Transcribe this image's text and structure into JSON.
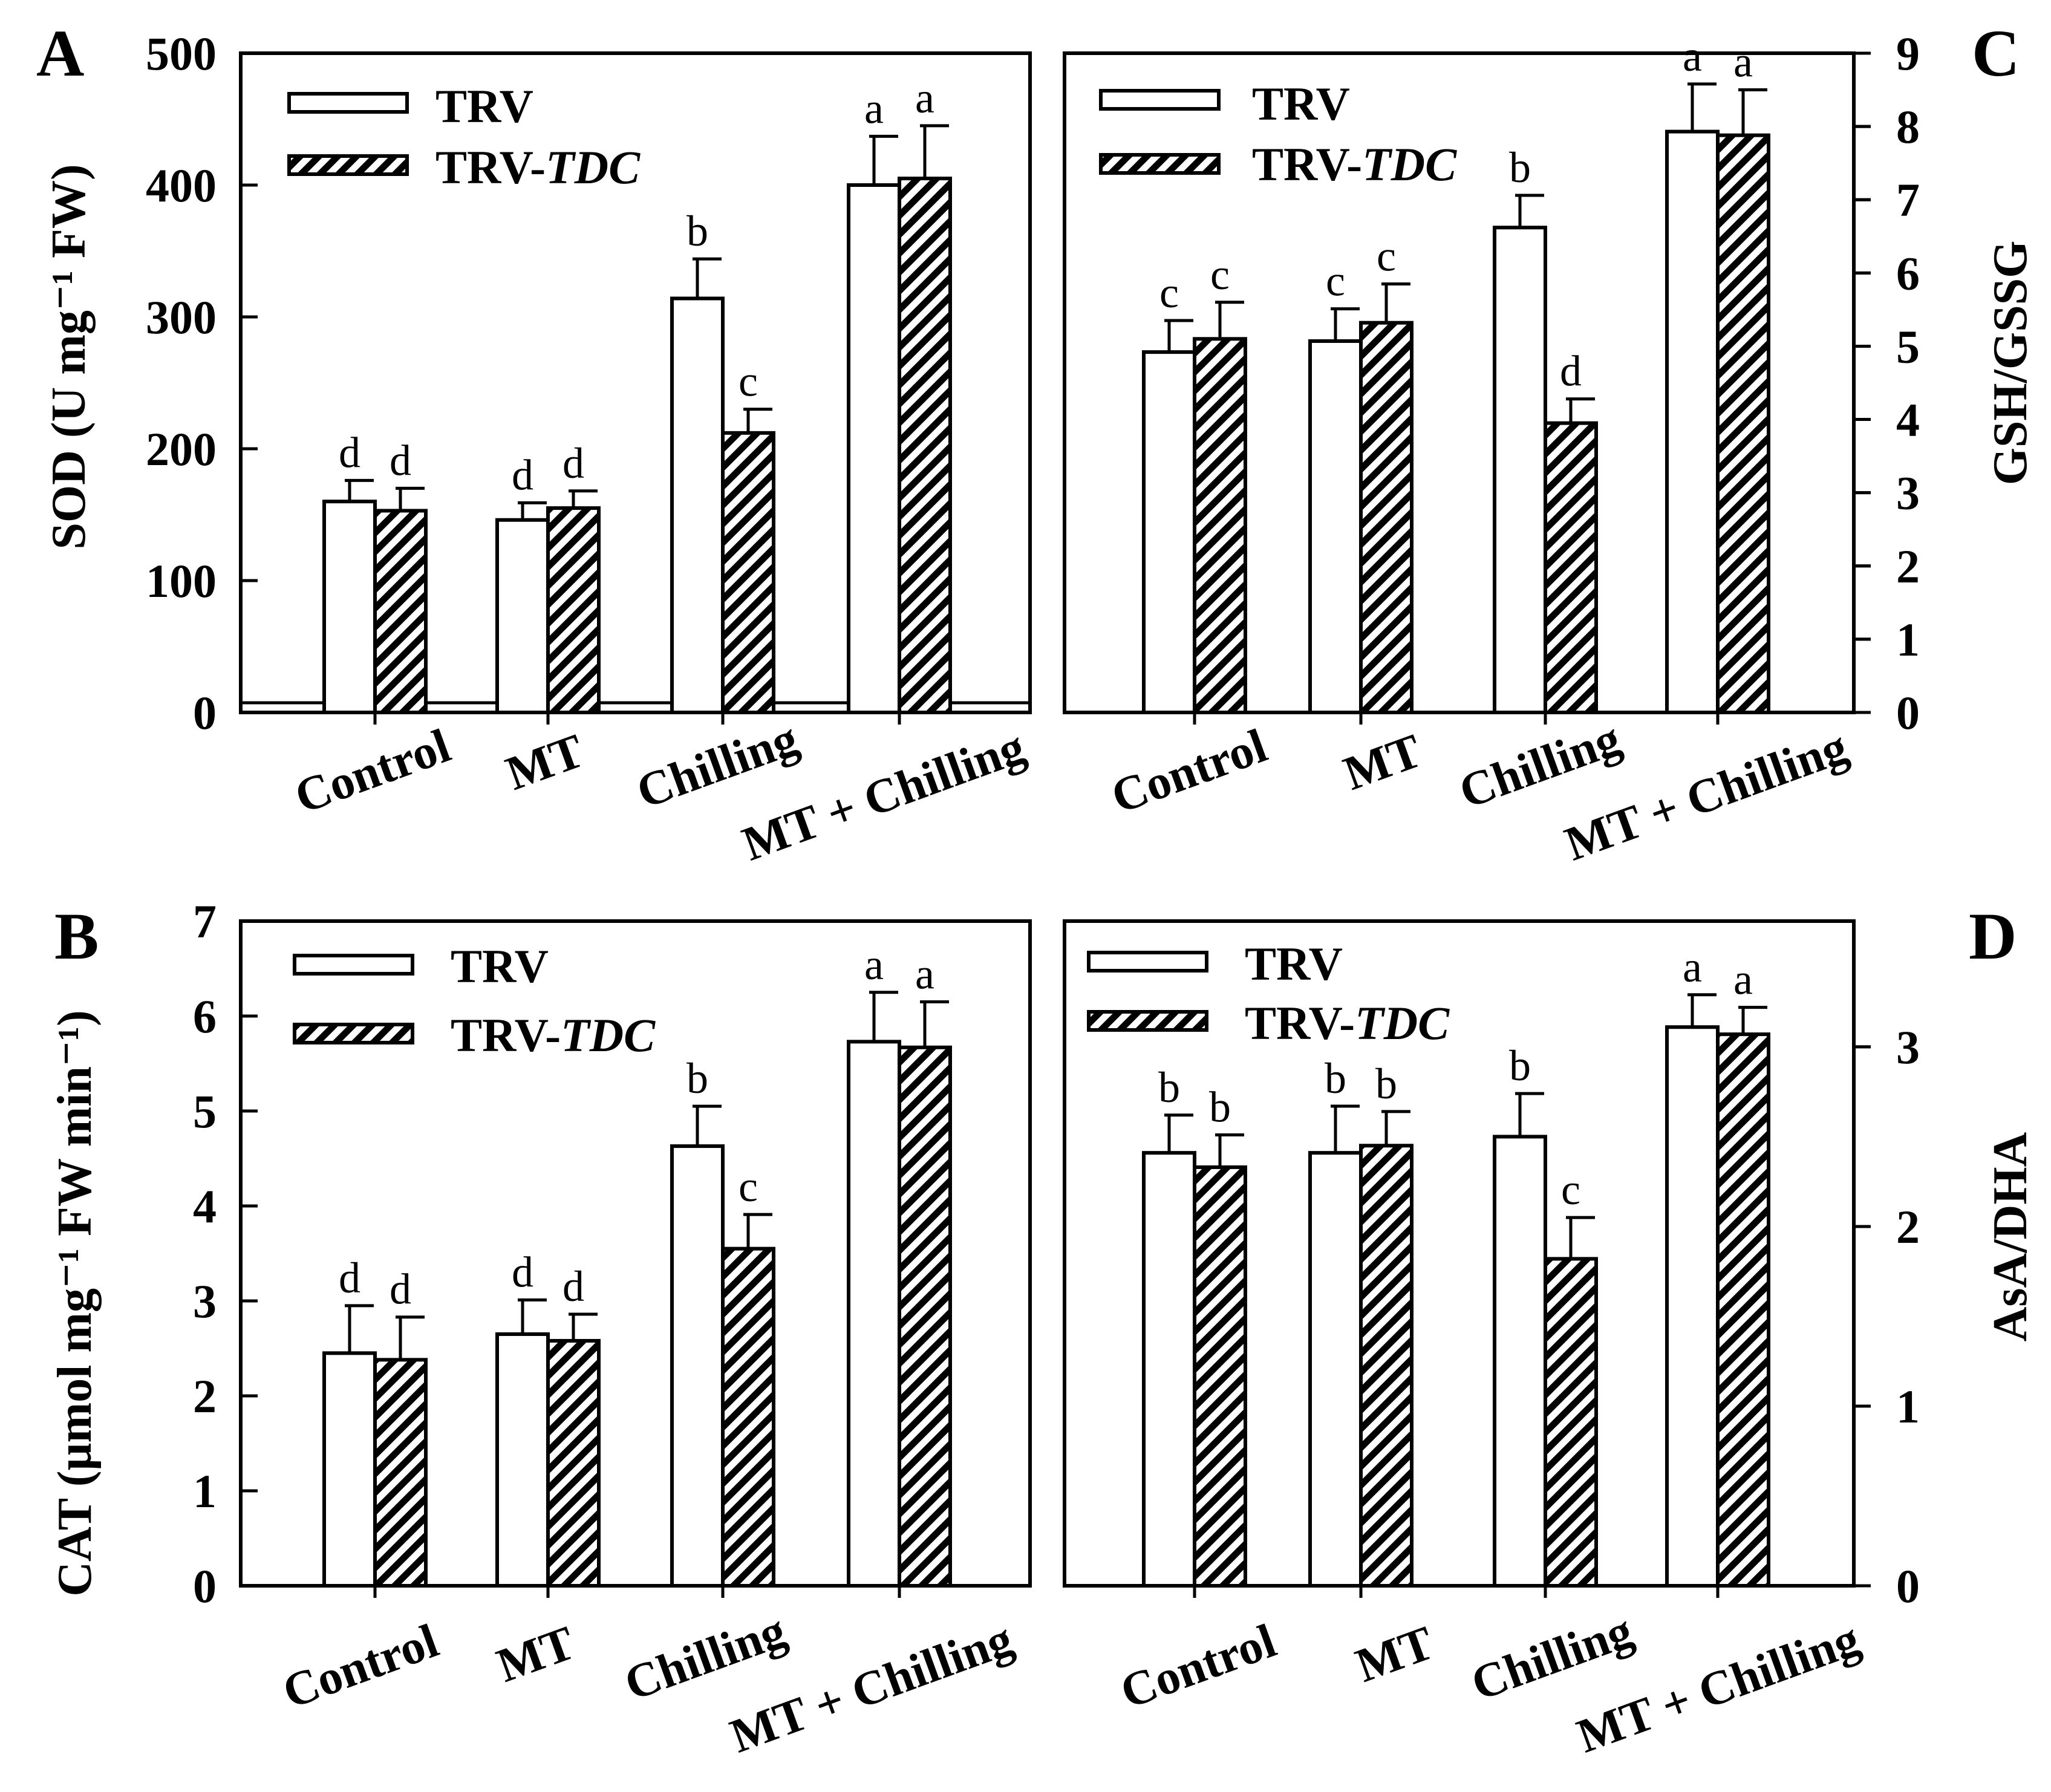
{
  "figure": {
    "categories": [
      "Control",
      "MT",
      "Chilling",
      "MT + Chilling"
    ]
  },
  "chart_data": [
    {
      "id": "A",
      "panel_label": "A",
      "type": "bar",
      "ylabel": "SOD (U mg⁻¹ FW)",
      "ylim": [
        0,
        500
      ],
      "yticks": [
        0,
        100,
        200,
        300,
        400,
        500
      ],
      "y_axis_side": "left",
      "grid": false,
      "legend": {
        "position": "top-left",
        "entries": [
          "TRV",
          "TRV-TDC"
        ]
      },
      "categories": [
        "Control",
        "MT",
        "Chilling",
        "MT + Chilling"
      ],
      "series": [
        {
          "name": "TRV",
          "pattern": "open",
          "values": [
            160,
            146,
            314,
            400
          ],
          "errors": [
            16,
            13,
            30,
            37
          ],
          "labels": [
            "d",
            "d",
            "b",
            "a"
          ]
        },
        {
          "name": "TRV-TDC",
          "pattern": "hatched",
          "values": [
            153,
            155,
            212,
            405
          ],
          "errors": [
            17,
            13,
            18,
            40
          ],
          "labels": [
            "d",
            "d",
            "c",
            "a"
          ]
        }
      ]
    },
    {
      "id": "B",
      "panel_label": "B",
      "type": "bar",
      "ylabel": "CAT (µmol mg⁻¹ FW min⁻¹)",
      "ylim": [
        0,
        7
      ],
      "yticks": [
        0,
        1,
        2,
        3,
        4,
        5,
        6,
        7
      ],
      "y_axis_side": "left",
      "grid": false,
      "legend": {
        "position": "top-left",
        "entries": [
          "TRV",
          "TRV-TDC"
        ]
      },
      "categories": [
        "Control",
        "MT",
        "Chilling",
        "MT + Chilling"
      ],
      "series": [
        {
          "name": "TRV",
          "pattern": "open",
          "values": [
            2.45,
            2.65,
            4.63,
            5.73
          ],
          "errors": [
            0.5,
            0.36,
            0.42,
            0.52
          ],
          "labels": [
            "d",
            "d",
            "b",
            "a"
          ]
        },
        {
          "name": "TRV-TDC",
          "pattern": "hatched",
          "values": [
            2.38,
            2.58,
            3.55,
            5.67
          ],
          "errors": [
            0.45,
            0.28,
            0.36,
            0.48
          ],
          "labels": [
            "d",
            "d",
            "c",
            "a"
          ]
        }
      ]
    },
    {
      "id": "C",
      "panel_label": "C",
      "type": "bar",
      "ylabel": "GSH/GSSG",
      "ylim": [
        0,
        9
      ],
      "yticks": [
        0,
        1,
        2,
        3,
        4,
        5,
        6,
        7,
        8,
        9
      ],
      "y_axis_side": "right",
      "grid": false,
      "legend": {
        "position": "top-left",
        "entries": [
          "TRV",
          "TRV-TDC"
        ]
      },
      "categories": [
        "Control",
        "MT",
        "Chilling",
        "MT + Chilling"
      ],
      "series": [
        {
          "name": "TRV",
          "pattern": "open",
          "values": [
            4.92,
            5.07,
            6.62,
            7.93
          ],
          "errors": [
            0.43,
            0.44,
            0.44,
            0.65
          ],
          "labels": [
            "c",
            "c",
            "b",
            "a"
          ]
        },
        {
          "name": "TRV-TDC",
          "pattern": "hatched",
          "values": [
            5.1,
            5.32,
            3.95,
            7.88
          ],
          "errors": [
            0.5,
            0.53,
            0.33,
            0.62
          ],
          "labels": [
            "c",
            "c",
            "d",
            "a"
          ]
        }
      ]
    },
    {
      "id": "D",
      "panel_label": "D",
      "type": "bar",
      "ylabel": "AsA/DHA",
      "ylim": [
        0,
        3.7
      ],
      "yticks": [
        0,
        1,
        2,
        3
      ],
      "y_axis_side": "right",
      "grid": false,
      "legend": {
        "position": "top-left",
        "entries": [
          "TRV",
          "TRV-TDC"
        ]
      },
      "categories": [
        "Control",
        "MT",
        "Chilling",
        "MT + Chilling"
      ],
      "series": [
        {
          "name": "TRV",
          "pattern": "open",
          "values": [
            2.41,
            2.41,
            2.5,
            3.11
          ],
          "errors": [
            0.21,
            0.26,
            0.24,
            0.18
          ],
          "labels": [
            "b",
            "b",
            "b",
            "a"
          ]
        },
        {
          "name": "TRV-TDC",
          "pattern": "hatched",
          "values": [
            2.33,
            2.45,
            1.82,
            3.07
          ],
          "errors": [
            0.18,
            0.19,
            0.23,
            0.15
          ],
          "labels": [
            "b",
            "b",
            "c",
            "a"
          ]
        }
      ]
    }
  ]
}
